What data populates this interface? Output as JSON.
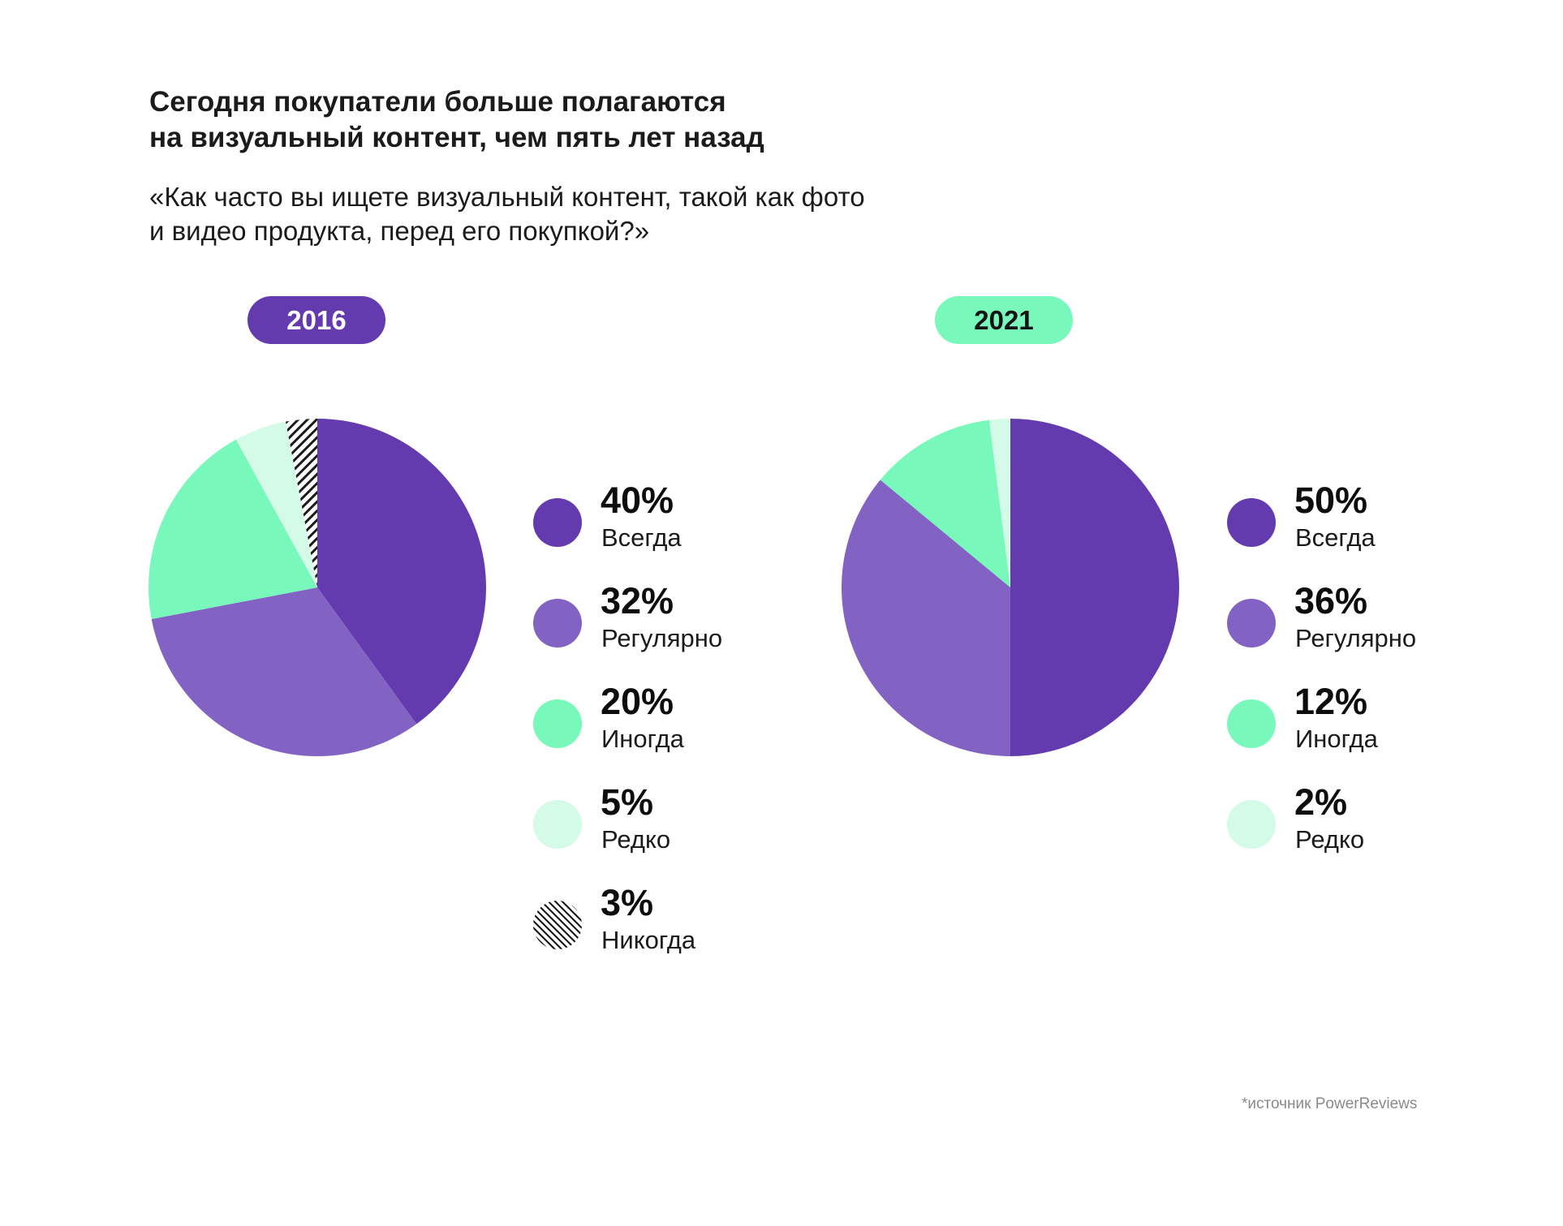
{
  "header": {
    "title_line1": "Сегодня покупатели больше полагаются",
    "title_line2": "на визуальный контент, чем пять лет назад",
    "question_line1": "«Как часто вы ищете визуальный контент, такой как фото",
    "question_line2": "и видео продукта, перед его покупкой?»"
  },
  "colors": {
    "always": "#643aaf",
    "regularly": "#8263c3",
    "sometimes": "#79f8bc",
    "rarely": "#d3fbe7",
    "never_hatch": "#1a1a1a"
  },
  "chart_data": [
    {
      "type": "pie",
      "title": "2016",
      "categories": [
        "Всегда",
        "Регулярно",
        "Иногда",
        "Редко",
        "Никогда"
      ],
      "values": [
        40,
        32,
        20,
        5,
        3
      ],
      "value_labels": [
        "40%",
        "32%",
        "20%",
        "5%",
        "3%"
      ],
      "colors": [
        "#643aaf",
        "#8263c3",
        "#79f8bc",
        "#d3fbe7",
        "hatch"
      ],
      "legend_position": "right"
    },
    {
      "type": "pie",
      "title": "2021",
      "categories": [
        "Всегда",
        "Регулярно",
        "Иногда",
        "Редко"
      ],
      "values": [
        50,
        36,
        12,
        2
      ],
      "value_labels": [
        "50%",
        "36%",
        "12%",
        "2%"
      ],
      "colors": [
        "#643aaf",
        "#8263c3",
        "#79f8bc",
        "#d3fbe7"
      ],
      "legend_position": "right"
    }
  ],
  "footer": {
    "source": "*источник PowerReviews"
  }
}
